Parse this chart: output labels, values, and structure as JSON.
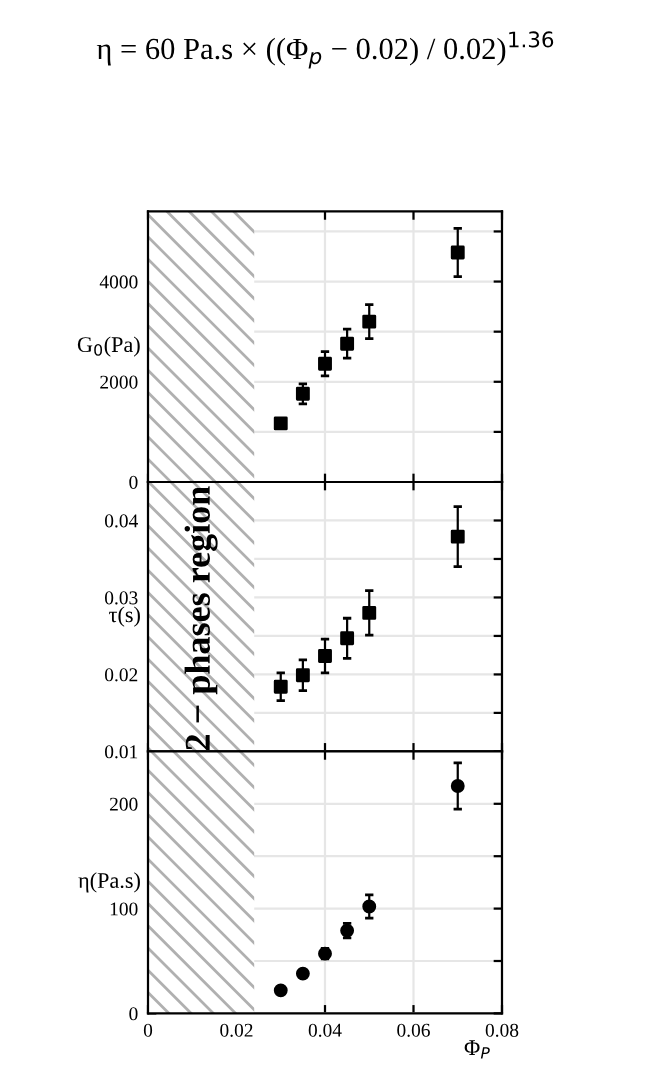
{
  "chart_data": [
    {
      "type": "scatter",
      "title": "η = 60 Pa.s × ((Φ$_{p}$ − 0.02) / 0.02)$^{1.36}$",
      "ylabel": "G$_{0}$(Pa)",
      "x": [
        0.03,
        0.035,
        0.04,
        0.045,
        0.05,
        0.07
      ],
      "xlim": [
        0,
        0.08
      ],
      "xticks": [
        0,
        0.02,
        0.04,
        0.06,
        0.08
      ],
      "ylim": [
        0,
        5400
      ],
      "yticks": [
        0,
        {
          "value": 1000,
          "label": null
        },
        2000,
        {
          "value": 3000,
          "label": null
        },
        4000,
        {
          "value": 5000,
          "label": null
        }
      ],
      "tick_labels": "y",
      "grid": true,
      "marker": "square",
      "series": [
        {
          "color": "#000000",
          "values": [
            1170,
            1760,
            2360,
            2760,
            3200,
            4580
          ],
          "errors": [
            100,
            200,
            240,
            290,
            340,
            480
          ]
        }
      ],
      "bands": [
        {
          "axis": "x",
          "from": 0,
          "to": 0.024,
          "color": "#b0b0b0"
        }
      ]
    },
    {
      "type": "scatter",
      "ylabel": "τ(s)",
      "x": [
        0.03,
        0.035,
        0.04,
        0.045,
        0.05,
        0.07
      ],
      "xlim": [
        0,
        0.08
      ],
      "xticks": [
        0,
        0.02,
        0.04,
        0.06,
        0.08
      ],
      "ylim": [
        0.01,
        0.045
      ],
      "yticks": [
        0.01,
        {
          "value": 0.015,
          "label": null
        },
        0.02,
        {
          "value": 0.025,
          "label": null
        },
        0.03,
        {
          "value": 0.035,
          "label": null
        },
        0.04
      ],
      "tick_labels": "y",
      "grid": true,
      "marker": "square",
      "series": [
        {
          "color": "#000000",
          "values": [
            0.0184,
            0.0199,
            0.0224,
            0.0247,
            0.028,
            0.0379
          ],
          "errors": [
            0.0018,
            0.002,
            0.0022,
            0.0026,
            0.0029,
            0.0039
          ]
        }
      ],
      "bands": [
        {
          "axis": "x",
          "from": 0,
          "to": 0.024,
          "color": "#b0b0b0",
          "label": "2 − phases region"
        }
      ]
    },
    {
      "type": "scatter",
      "ylabel": "η(Pa.s)",
      "xlabel": "Φ$_{P}$",
      "x": [
        0.03,
        0.035,
        0.04,
        0.045,
        0.05,
        0.07
      ],
      "xlim": [
        0,
        0.08
      ],
      "xticks": [
        0,
        0.02,
        0.04,
        0.06,
        0.08
      ],
      "ylim": [
        0,
        250
      ],
      "yticks": [
        0,
        {
          "value": 50,
          "label": null
        },
        100,
        {
          "value": 150,
          "label": null
        },
        200
      ],
      "grid": true,
      "marker": "circle",
      "series": [
        {
          "color": "#000000",
          "values": [
            22,
            38,
            57,
            79,
            102,
            217
          ],
          "errors": [
            2,
            3,
            5,
            7,
            11,
            22
          ]
        }
      ],
      "bands": [
        {
          "axis": "x",
          "from": 0,
          "to": 0.024,
          "color": "#b0b0b0"
        }
      ]
    }
  ]
}
